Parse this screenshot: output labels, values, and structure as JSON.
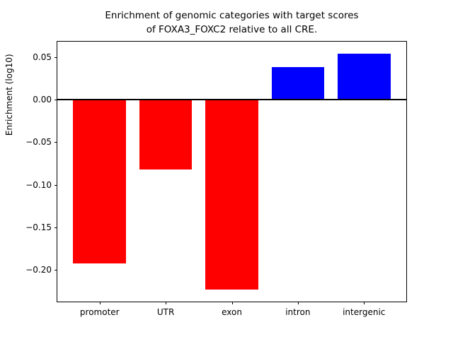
{
  "chart_data": {
    "type": "bar",
    "title": "Enrichment of genomic categories with target scores\nof FOXA3_FOXC2 relative to all CRE.",
    "title_lines": [
      "Enrichment of genomic categories with target scores",
      "of FOXA3_FOXC2 relative to all CRE."
    ],
    "xlabel": "",
    "ylabel": "Enrichment (log10)",
    "categories": [
      "promoter",
      "UTR",
      "exon",
      "intron",
      "intergenic"
    ],
    "values": [
      -0.192,
      -0.082,
      -0.223,
      0.038,
      0.054
    ],
    "bar_colors": [
      "#ff0000",
      "#ff0000",
      "#ff0000",
      "#0000ff",
      "#0000ff"
    ],
    "negative_color": "#ff0000",
    "positive_color": "#0000ff",
    "bar_width": 0.8,
    "xlim": [
      -0.64,
      4.64
    ],
    "ylim": [
      -0.237,
      0.068
    ],
    "yticks": [
      {
        "value": 0.05,
        "label": "0.05"
      },
      {
        "value": 0.0,
        "label": "0.00"
      },
      {
        "value": -0.05,
        "label": "−0.05"
      },
      {
        "value": -0.1,
        "label": "−0.10"
      },
      {
        "value": -0.15,
        "label": "−0.15"
      },
      {
        "value": -0.2,
        "label": "−0.20"
      }
    ],
    "zero_line": true,
    "grid": false,
    "legend": null
  }
}
